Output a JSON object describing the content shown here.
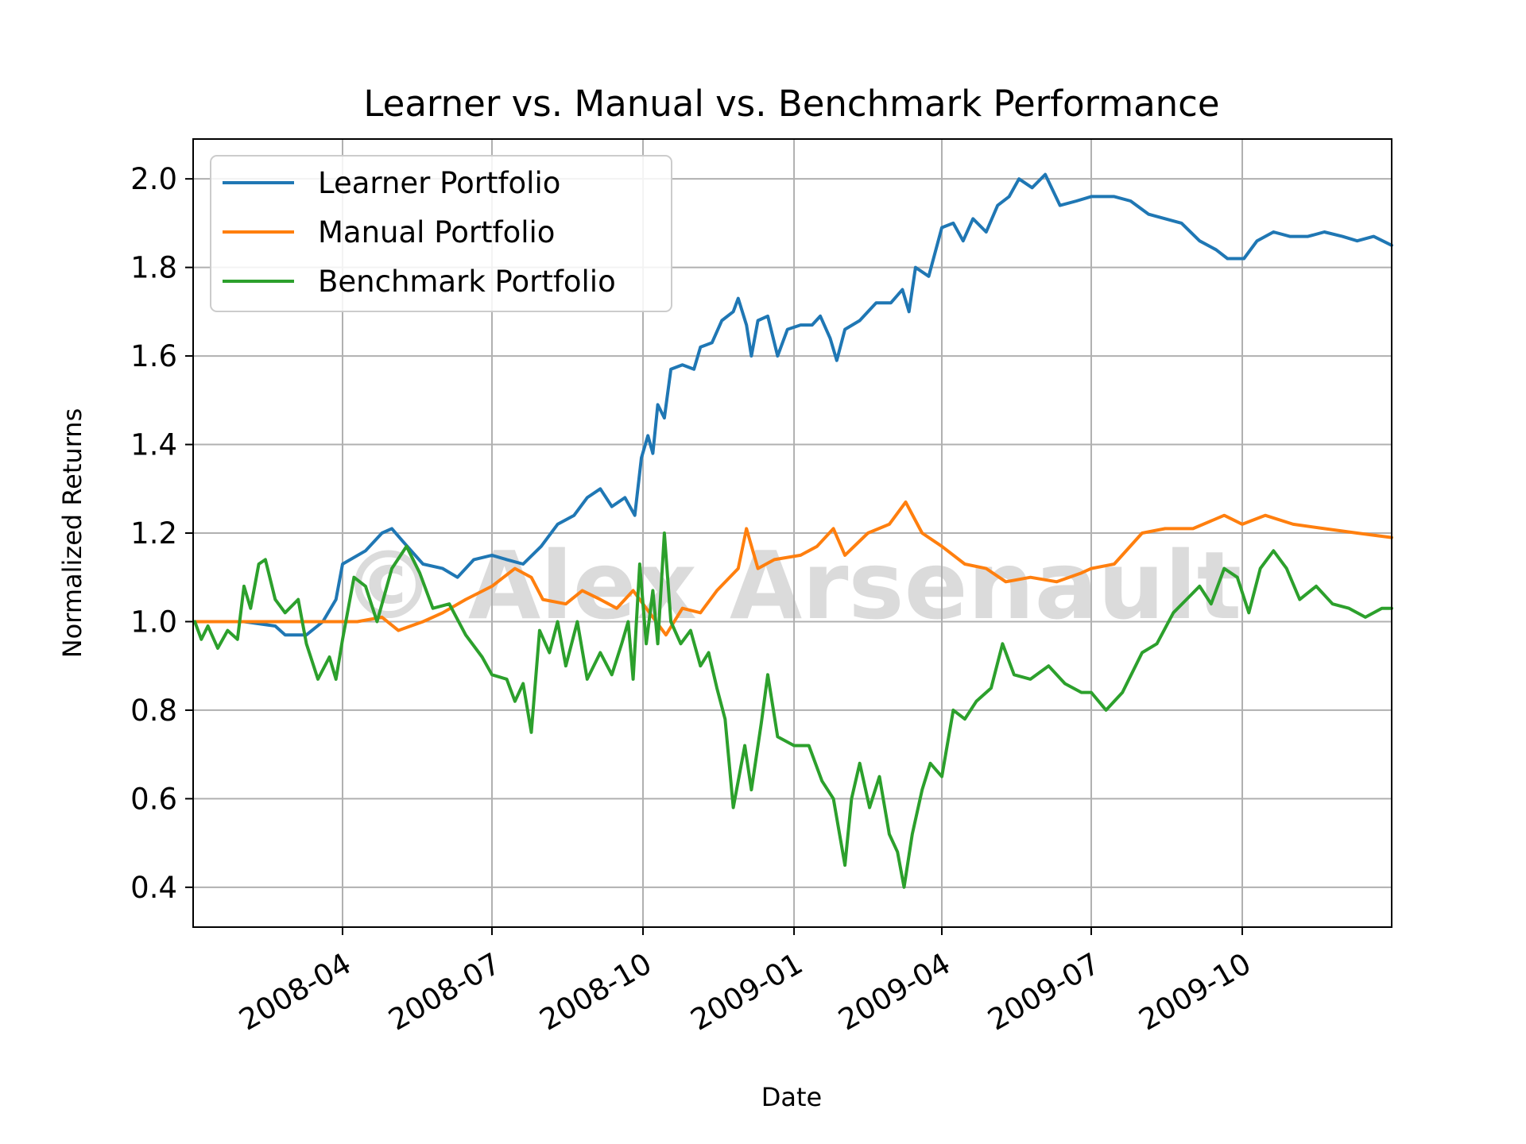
{
  "chart_data": {
    "type": "line",
    "title": "Learner vs. Manual vs. Benchmark Performance",
    "xlabel": "Date",
    "ylabel": "Normalized Returns",
    "xlim": [
      "2008-01-01",
      "2009-12-31"
    ],
    "ylim": [
      0.31,
      2.09
    ],
    "x_tick_labels": [
      "2008-04",
      "2008-07",
      "2008-10",
      "2009-01",
      "2009-04",
      "2009-07",
      "2009-10"
    ],
    "x_ticks": [
      "2008-04-01",
      "2008-07-01",
      "2008-10-01",
      "2009-01-01",
      "2009-04-01",
      "2009-07-01",
      "2009-10-01"
    ],
    "y_ticks": [
      0.4,
      0.6,
      0.8,
      1.0,
      1.2,
      1.4,
      1.6,
      1.8,
      2.0
    ],
    "y_tick_labels": [
      "0.4",
      "0.6",
      "0.8",
      "1.0",
      "1.2",
      "1.4",
      "1.6",
      "1.8",
      "2.0"
    ],
    "grid": true,
    "legend_position": "top-left",
    "watermark": "© Alex Arsenault",
    "series": [
      {
        "name": "Learner Portfolio",
        "color": "#1f77b4",
        "points": [
          [
            "2008-01-02",
            1.0
          ],
          [
            "2008-02-01",
            1.0
          ],
          [
            "2008-02-20",
            0.99
          ],
          [
            "2008-02-26",
            0.97
          ],
          [
            "2008-03-10",
            0.97
          ],
          [
            "2008-03-20",
            1.0
          ],
          [
            "2008-03-28",
            1.05
          ],
          [
            "2008-04-01",
            1.13
          ],
          [
            "2008-04-15",
            1.16
          ],
          [
            "2008-04-25",
            1.2
          ],
          [
            "2008-05-01",
            1.21
          ],
          [
            "2008-05-08",
            1.18
          ],
          [
            "2008-05-20",
            1.13
          ],
          [
            "2008-06-01",
            1.12
          ],
          [
            "2008-06-10",
            1.1
          ],
          [
            "2008-06-20",
            1.14
          ],
          [
            "2008-07-01",
            1.15
          ],
          [
            "2008-07-10",
            1.14
          ],
          [
            "2008-07-20",
            1.13
          ],
          [
            "2008-07-31",
            1.17
          ],
          [
            "2008-08-10",
            1.22
          ],
          [
            "2008-08-20",
            1.24
          ],
          [
            "2008-08-28",
            1.28
          ],
          [
            "2008-09-05",
            1.3
          ],
          [
            "2008-09-12",
            1.26
          ],
          [
            "2008-09-20",
            1.28
          ],
          [
            "2008-09-26",
            1.24
          ],
          [
            "2008-09-30",
            1.37
          ],
          [
            "2008-10-04",
            1.42
          ],
          [
            "2008-10-07",
            1.38
          ],
          [
            "2008-10-10",
            1.49
          ],
          [
            "2008-10-14",
            1.46
          ],
          [
            "2008-10-18",
            1.57
          ],
          [
            "2008-10-25",
            1.58
          ],
          [
            "2008-11-01",
            1.57
          ],
          [
            "2008-11-05",
            1.62
          ],
          [
            "2008-11-12",
            1.63
          ],
          [
            "2008-11-18",
            1.68
          ],
          [
            "2008-11-25",
            1.7
          ],
          [
            "2008-11-28",
            1.73
          ],
          [
            "2008-12-03",
            1.67
          ],
          [
            "2008-12-06",
            1.6
          ],
          [
            "2008-12-10",
            1.68
          ],
          [
            "2008-12-16",
            1.69
          ],
          [
            "2008-12-22",
            1.6
          ],
          [
            "2008-12-28",
            1.66
          ],
          [
            "2009-01-05",
            1.67
          ],
          [
            "2009-01-12",
            1.67
          ],
          [
            "2009-01-17",
            1.69
          ],
          [
            "2009-01-23",
            1.64
          ],
          [
            "2009-01-27",
            1.59
          ],
          [
            "2009-02-01",
            1.66
          ],
          [
            "2009-02-10",
            1.68
          ],
          [
            "2009-02-20",
            1.72
          ],
          [
            "2009-03-01",
            1.72
          ],
          [
            "2009-03-08",
            1.75
          ],
          [
            "2009-03-12",
            1.7
          ],
          [
            "2009-03-16",
            1.8
          ],
          [
            "2009-03-24",
            1.78
          ],
          [
            "2009-04-01",
            1.89
          ],
          [
            "2009-04-08",
            1.9
          ],
          [
            "2009-04-14",
            1.86
          ],
          [
            "2009-04-20",
            1.91
          ],
          [
            "2009-04-28",
            1.88
          ],
          [
            "2009-05-05",
            1.94
          ],
          [
            "2009-05-12",
            1.96
          ],
          [
            "2009-05-18",
            2.0
          ],
          [
            "2009-05-26",
            1.98
          ],
          [
            "2009-06-03",
            2.01
          ],
          [
            "2009-06-12",
            1.94
          ],
          [
            "2009-06-22",
            1.95
          ],
          [
            "2009-07-01",
            1.96
          ],
          [
            "2009-07-15",
            1.96
          ],
          [
            "2009-07-25",
            1.95
          ],
          [
            "2009-08-05",
            1.92
          ],
          [
            "2009-08-15",
            1.91
          ],
          [
            "2009-08-25",
            1.9
          ],
          [
            "2009-09-05",
            1.86
          ],
          [
            "2009-09-15",
            1.84
          ],
          [
            "2009-09-22",
            1.82
          ],
          [
            "2009-10-02",
            1.82
          ],
          [
            "2009-10-10",
            1.86
          ],
          [
            "2009-10-20",
            1.88
          ],
          [
            "2009-10-30",
            1.87
          ],
          [
            "2009-11-10",
            1.87
          ],
          [
            "2009-11-20",
            1.88
          ],
          [
            "2009-12-01",
            1.87
          ],
          [
            "2009-12-10",
            1.86
          ],
          [
            "2009-12-20",
            1.87
          ],
          [
            "2009-12-31",
            1.85
          ]
        ]
      },
      {
        "name": "Manual Portfolio",
        "color": "#ff7f0e",
        "points": [
          [
            "2008-01-02",
            1.0
          ],
          [
            "2008-03-20",
            1.0
          ],
          [
            "2008-04-10",
            1.0
          ],
          [
            "2008-04-25",
            1.01
          ],
          [
            "2008-05-05",
            0.98
          ],
          [
            "2008-05-20",
            1.0
          ],
          [
            "2008-06-01",
            1.02
          ],
          [
            "2008-06-15",
            1.05
          ],
          [
            "2008-07-01",
            1.08
          ],
          [
            "2008-07-15",
            1.12
          ],
          [
            "2008-07-25",
            1.1
          ],
          [
            "2008-08-01",
            1.05
          ],
          [
            "2008-08-15",
            1.04
          ],
          [
            "2008-08-25",
            1.07
          ],
          [
            "2008-09-05",
            1.05
          ],
          [
            "2008-09-15",
            1.03
          ],
          [
            "2008-09-25",
            1.07
          ],
          [
            "2008-10-05",
            1.02
          ],
          [
            "2008-10-15",
            0.97
          ],
          [
            "2008-10-25",
            1.03
          ],
          [
            "2008-11-05",
            1.02
          ],
          [
            "2008-11-15",
            1.07
          ],
          [
            "2008-11-28",
            1.12
          ],
          [
            "2008-12-03",
            1.21
          ],
          [
            "2008-12-10",
            1.12
          ],
          [
            "2008-12-20",
            1.14
          ],
          [
            "2009-01-05",
            1.15
          ],
          [
            "2009-01-15",
            1.17
          ],
          [
            "2009-01-25",
            1.21
          ],
          [
            "2009-02-01",
            1.15
          ],
          [
            "2009-02-15",
            1.2
          ],
          [
            "2009-02-28",
            1.22
          ],
          [
            "2009-03-10",
            1.27
          ],
          [
            "2009-03-20",
            1.2
          ],
          [
            "2009-04-01",
            1.17
          ],
          [
            "2009-04-15",
            1.13
          ],
          [
            "2009-04-28",
            1.12
          ],
          [
            "2009-05-10",
            1.09
          ],
          [
            "2009-05-25",
            1.1
          ],
          [
            "2009-06-10",
            1.09
          ],
          [
            "2009-06-25",
            1.11
          ],
          [
            "2009-07-01",
            1.12
          ],
          [
            "2009-07-15",
            1.13
          ],
          [
            "2009-08-01",
            1.2
          ],
          [
            "2009-08-15",
            1.21
          ],
          [
            "2009-09-01",
            1.21
          ],
          [
            "2009-09-20",
            1.24
          ],
          [
            "2009-10-01",
            1.22
          ],
          [
            "2009-10-15",
            1.24
          ],
          [
            "2009-11-01",
            1.22
          ],
          [
            "2009-11-20",
            1.21
          ],
          [
            "2009-12-10",
            1.2
          ],
          [
            "2009-12-31",
            1.19
          ]
        ]
      },
      {
        "name": "Benchmark Portfolio",
        "color": "#2ca02c",
        "points": [
          [
            "2008-01-02",
            1.0
          ],
          [
            "2008-01-06",
            0.96
          ],
          [
            "2008-01-10",
            0.99
          ],
          [
            "2008-01-16",
            0.94
          ],
          [
            "2008-01-22",
            0.98
          ],
          [
            "2008-01-28",
            0.96
          ],
          [
            "2008-02-01",
            1.08
          ],
          [
            "2008-02-05",
            1.03
          ],
          [
            "2008-02-10",
            1.13
          ],
          [
            "2008-02-14",
            1.14
          ],
          [
            "2008-02-20",
            1.05
          ],
          [
            "2008-02-26",
            1.02
          ],
          [
            "2008-03-05",
            1.05
          ],
          [
            "2008-03-10",
            0.95
          ],
          [
            "2008-03-17",
            0.87
          ],
          [
            "2008-03-24",
            0.92
          ],
          [
            "2008-03-28",
            0.87
          ],
          [
            "2008-04-01",
            0.96
          ],
          [
            "2008-04-08",
            1.1
          ],
          [
            "2008-04-15",
            1.08
          ],
          [
            "2008-04-22",
            1.0
          ],
          [
            "2008-05-01",
            1.12
          ],
          [
            "2008-05-10",
            1.17
          ],
          [
            "2008-05-18",
            1.11
          ],
          [
            "2008-05-26",
            1.03
          ],
          [
            "2008-06-05",
            1.04
          ],
          [
            "2008-06-15",
            0.97
          ],
          [
            "2008-06-25",
            0.92
          ],
          [
            "2008-07-01",
            0.88
          ],
          [
            "2008-07-10",
            0.87
          ],
          [
            "2008-07-15",
            0.82
          ],
          [
            "2008-07-20",
            0.86
          ],
          [
            "2008-07-25",
            0.75
          ],
          [
            "2008-07-30",
            0.98
          ],
          [
            "2008-08-05",
            0.93
          ],
          [
            "2008-08-10",
            1.0
          ],
          [
            "2008-08-15",
            0.9
          ],
          [
            "2008-08-22",
            1.0
          ],
          [
            "2008-08-28",
            0.87
          ],
          [
            "2008-09-05",
            0.93
          ],
          [
            "2008-09-12",
            0.88
          ],
          [
            "2008-09-18",
            0.95
          ],
          [
            "2008-09-22",
            1.0
          ],
          [
            "2008-09-25",
            0.87
          ],
          [
            "2008-09-29",
            1.13
          ],
          [
            "2008-10-03",
            0.95
          ],
          [
            "2008-10-07",
            1.07
          ],
          [
            "2008-10-10",
            0.95
          ],
          [
            "2008-10-14",
            1.2
          ],
          [
            "2008-10-18",
            1.0
          ],
          [
            "2008-10-24",
            0.95
          ],
          [
            "2008-10-30",
            0.98
          ],
          [
            "2008-11-05",
            0.9
          ],
          [
            "2008-11-10",
            0.93
          ],
          [
            "2008-11-15",
            0.85
          ],
          [
            "2008-11-20",
            0.78
          ],
          [
            "2008-11-25",
            0.58
          ],
          [
            "2008-12-02",
            0.72
          ],
          [
            "2008-12-06",
            0.62
          ],
          [
            "2008-12-12",
            0.77
          ],
          [
            "2008-12-16",
            0.88
          ],
          [
            "2008-12-22",
            0.74
          ],
          [
            "2009-01-01",
            0.72
          ],
          [
            "2009-01-10",
            0.72
          ],
          [
            "2009-01-18",
            0.64
          ],
          [
            "2009-01-25",
            0.6
          ],
          [
            "2009-02-01",
            0.45
          ],
          [
            "2009-02-05",
            0.6
          ],
          [
            "2009-02-10",
            0.68
          ],
          [
            "2009-02-16",
            0.58
          ],
          [
            "2009-02-22",
            0.65
          ],
          [
            "2009-02-28",
            0.52
          ],
          [
            "2009-03-05",
            0.48
          ],
          [
            "2009-03-09",
            0.4
          ],
          [
            "2009-03-14",
            0.52
          ],
          [
            "2009-03-20",
            0.62
          ],
          [
            "2009-03-25",
            0.68
          ],
          [
            "2009-04-01",
            0.65
          ],
          [
            "2009-04-08",
            0.8
          ],
          [
            "2009-04-15",
            0.78
          ],
          [
            "2009-04-22",
            0.82
          ],
          [
            "2009-05-01",
            0.85
          ],
          [
            "2009-05-08",
            0.95
          ],
          [
            "2009-05-15",
            0.88
          ],
          [
            "2009-05-25",
            0.87
          ],
          [
            "2009-06-05",
            0.9
          ],
          [
            "2009-06-15",
            0.86
          ],
          [
            "2009-06-25",
            0.84
          ],
          [
            "2009-07-01",
            0.84
          ],
          [
            "2009-07-10",
            0.8
          ],
          [
            "2009-07-20",
            0.84
          ],
          [
            "2009-08-01",
            0.93
          ],
          [
            "2009-08-10",
            0.95
          ],
          [
            "2009-08-20",
            1.02
          ],
          [
            "2009-08-28",
            1.05
          ],
          [
            "2009-09-05",
            1.08
          ],
          [
            "2009-09-12",
            1.04
          ],
          [
            "2009-09-20",
            1.12
          ],
          [
            "2009-09-28",
            1.1
          ],
          [
            "2009-10-05",
            1.02
          ],
          [
            "2009-10-12",
            1.12
          ],
          [
            "2009-10-20",
            1.16
          ],
          [
            "2009-10-28",
            1.12
          ],
          [
            "2009-11-05",
            1.05
          ],
          [
            "2009-11-15",
            1.08
          ],
          [
            "2009-11-25",
            1.04
          ],
          [
            "2009-12-05",
            1.03
          ],
          [
            "2009-12-15",
            1.01
          ],
          [
            "2009-12-25",
            1.03
          ],
          [
            "2009-12-31",
            1.03
          ]
        ]
      }
    ]
  }
}
